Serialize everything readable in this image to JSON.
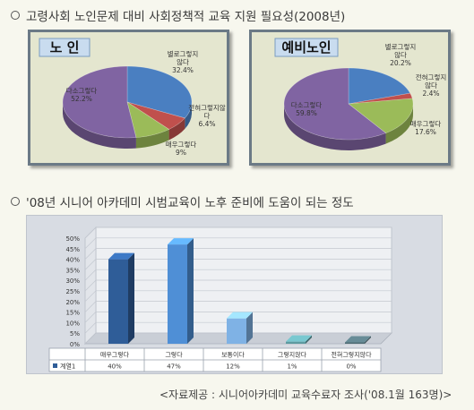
{
  "section1": {
    "heading": "고령사회 노인문제 대비 사회정책적 교육 지원 필요성(2008년)"
  },
  "section2": {
    "heading": "'08년 시니어 아카데미 시범교육이 노후 준비에 도움이 되는 정도"
  },
  "footer": {
    "source": "<자료제공 : 시니어아카데미 교육수료자 조사('08.1월 163명)>"
  },
  "chart_data": [
    {
      "type": "pie",
      "title": "노 인",
      "categories": [
        "별로그렇지 않다",
        "전혀그렇지않다",
        "매우그렇다",
        "다소그렇다"
      ],
      "label_text": [
        "별로그렇지 않다\n32.4%",
        "전혀그렇지않 다\n6.4%",
        "매우그렇다\n9%",
        "다소그렇다\n52.2%"
      ],
      "values": [
        32.4,
        6.4,
        9.0,
        52.2
      ],
      "colors": [
        "#4a7fc1",
        "#c0504d",
        "#9bbb59",
        "#8064a2"
      ]
    },
    {
      "type": "pie",
      "title": "예비노인",
      "categories": [
        "별로그렇지 않다",
        "전혀그렇지 않다",
        "매우그렇다",
        "다소그렇다"
      ],
      "label_text": [
        "별로그렇지 않다\n20.2%",
        "전혀그렇지 않다\n2.4%",
        "매우그렇다\n17.6%",
        "다소그렇다\n59.8%"
      ],
      "values": [
        20.2,
        2.4,
        17.6,
        59.8
      ],
      "colors": [
        "#4a7fc1",
        "#c0504d",
        "#9bbb59",
        "#8064a2"
      ]
    },
    {
      "type": "bar",
      "categories": [
        "매우그렇다",
        "그렇다",
        "보통이다",
        "그렇지않다",
        "전혀그렇지않다"
      ],
      "series": [
        {
          "name": "계열1",
          "values": [
            40,
            47,
            12,
            1,
            0
          ]
        }
      ],
      "value_labels": [
        "40%",
        "47%",
        "12%",
        "1%",
        "0%"
      ],
      "yticks": [
        "0%",
        "5%",
        "10%",
        "15%",
        "20%",
        "25%",
        "30%",
        "35%",
        "40%",
        "45%",
        "50%"
      ],
      "ylim": [
        0,
        50
      ],
      "bar_colors": [
        "#2f5d98",
        "#4f8fd6",
        "#7fb2e5",
        "#5d9aa0",
        "#4f6c74"
      ]
    }
  ]
}
